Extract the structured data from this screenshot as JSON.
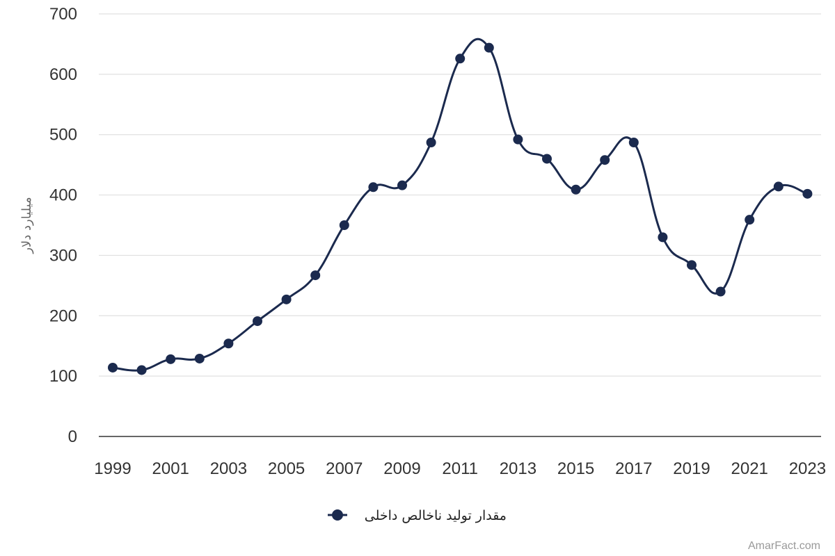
{
  "chart_data": {
    "type": "line",
    "title": "",
    "xlabel": "",
    "ylabel": "میلیارد دلار",
    "x": [
      1999,
      2000,
      2001,
      2002,
      2003,
      2004,
      2005,
      2006,
      2007,
      2008,
      2009,
      2010,
      2011,
      2012,
      2013,
      2014,
      2015,
      2016,
      2017,
      2018,
      2019,
      2020,
      2021,
      2022,
      2023
    ],
    "x_tick_labels": [
      "1999",
      "2001",
      "2003",
      "2005",
      "2007",
      "2009",
      "2011",
      "2013",
      "2015",
      "2017",
      "2019",
      "2021",
      "2023"
    ],
    "y_ticks": [
      0,
      100,
      200,
      300,
      400,
      500,
      600,
      700
    ],
    "ylim": [
      0,
      700
    ],
    "grid": true,
    "legend_position": "bottom",
    "series": [
      {
        "name": "مقدار تولید ناخالص داخلی",
        "color": "#1b2a4e",
        "values": [
          114,
          110,
          128,
          129,
          154,
          191,
          227,
          267,
          350,
          413,
          416,
          487,
          626,
          644,
          492,
          460,
          409,
          458,
          487,
          330,
          284,
          240,
          359,
          414,
          402
        ]
      }
    ]
  },
  "credit": "AmarFact.com"
}
